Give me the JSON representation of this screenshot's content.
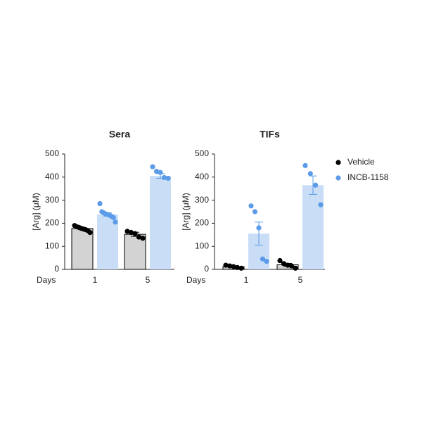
{
  "chart_data": [
    {
      "type": "bar",
      "title": "Sera",
      "ylabel": "[Arg] (μM)",
      "xlabel": "Days",
      "categories": [
        "1",
        "5"
      ],
      "ylim": [
        0,
        500
      ],
      "yticks": [
        0,
        100,
        200,
        300,
        400,
        500
      ],
      "series": [
        {
          "color": "#000000",
          "bar_color": "#d3d3d3",
          "values": [
            177,
            152
          ],
          "errors": [
            5,
            9
          ],
          "points": [
            [
              190,
              185,
              182,
              178,
              175,
              172,
              168,
              160
            ],
            [
              165,
              160,
              155,
              140,
              135
            ]
          ]
        },
        {
          "color": "#5b9be8",
          "bar_color": "#c9ddf6",
          "values": [
            238,
            405
          ],
          "errors": [
            7,
            10
          ],
          "points": [
            [
              285,
              250,
              245,
              240,
              238,
              235,
              230,
              225,
              205
            ],
            [
              445,
              425,
              420,
              398,
              395
            ]
          ]
        }
      ]
    },
    {
      "type": "bar",
      "title": "TIFs",
      "ylabel": "[Arg] (μM)",
      "xlabel": "Days",
      "categories": [
        "1",
        "5"
      ],
      "ylim": [
        0,
        500
      ],
      "yticks": [
        0,
        100,
        200,
        300,
        400,
        500
      ],
      "series": [
        {
          "name": "Vehicle",
          "color": "#000000",
          "bar_color": "#d3d3d3",
          "values": [
            12,
            20
          ],
          "errors": [
            3,
            6
          ],
          "points": [
            [
              18,
              15,
              12,
              8,
              5
            ],
            [
              38,
              25,
              18,
              15,
              5
            ]
          ]
        },
        {
          "name": "INCB-1158",
          "color": "#5b9be8",
          "bar_color": "#c9ddf6",
          "values": [
            155,
            365
          ],
          "errors": [
            50,
            40
          ],
          "points": [
            [
              275,
              250,
              180,
              45,
              35
            ],
            [
              450,
              415,
              365,
              280
            ]
          ]
        }
      ]
    }
  ]
}
